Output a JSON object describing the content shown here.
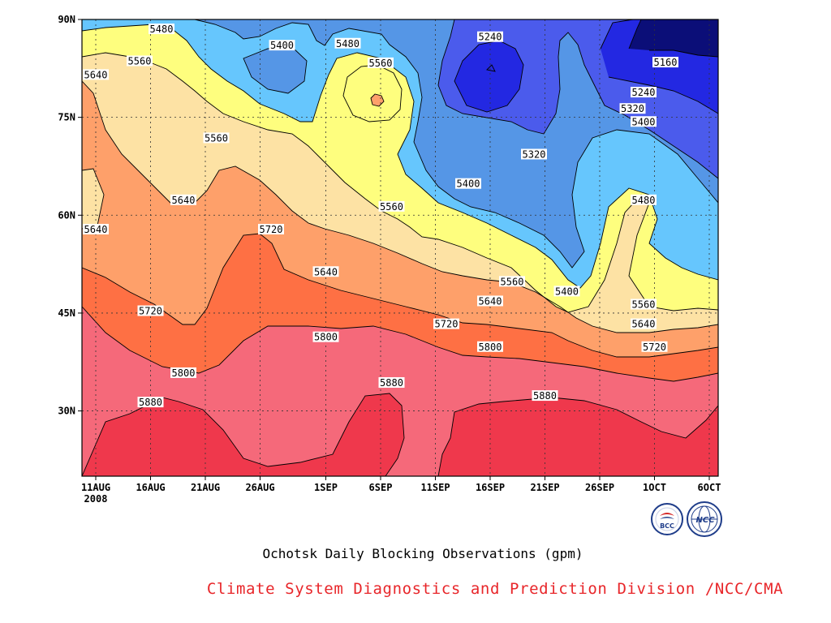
{
  "chart_data": {
    "type": "heatmap",
    "subtype": "filled-contour (time–latitude Hovmöller)",
    "caption": "Ochotsk Daily Blocking Observations (gpm)",
    "credit": "Climate System Diagnostics and Prediction Division /NCC/CMA",
    "x_axis": {
      "ticks": [
        {
          "label": "11AUG",
          "sublabel": "2008",
          "date": "2008-08-11"
        },
        {
          "label": "16AUG",
          "date": "2008-08-16"
        },
        {
          "label": "21AUG",
          "date": "2008-08-21"
        },
        {
          "label": "26AUG",
          "date": "2008-08-26"
        },
        {
          "label": "1SEP",
          "date": "2008-09-01"
        },
        {
          "label": "6SEP",
          "date": "2008-09-06"
        },
        {
          "label": "11SEP",
          "date": "2008-09-11"
        },
        {
          "label": "16SEP",
          "date": "2008-09-16"
        },
        {
          "label": "21SEP",
          "date": "2008-09-21"
        },
        {
          "label": "26SEP",
          "date": "2008-09-26"
        },
        {
          "label": "1OCT",
          "date": "2008-10-01"
        },
        {
          "label": "6OCT",
          "date": "2008-10-06"
        }
      ]
    },
    "y_axis": {
      "range": [
        20,
        90
      ],
      "ticks": [
        {
          "label": "30N",
          "value": 30
        },
        {
          "label": "45N",
          "value": 45
        },
        {
          "label": "60N",
          "value": 60
        },
        {
          "label": "75N",
          "value": 75
        },
        {
          "label": "90N",
          "value": 90
        }
      ]
    },
    "grid": true,
    "levels": [
      5160,
      5240,
      5320,
      5400,
      5480,
      5560,
      5640,
      5720,
      5800,
      5880
    ],
    "colors": {
      "above_5880": "#ef384c",
      "5800_5880": "#f5697a",
      "5720_5800": "#fe7044",
      "5640_5720": "#fea06a",
      "5560_5640": "#fde2a4",
      "5480_5560": "#fefe7e",
      "5400_5480": "#66c6fd",
      "5320_5400": "#5596e6",
      "5240_5320": "#4b5bec",
      "5160_5240": "#2328e2",
      "below_5160": "#0b0e78",
      "credit_text": "#e8262a"
    },
    "contour_labels": [
      {
        "text": "5480",
        "date": "2008-08-17",
        "lat": 88.5
      },
      {
        "text": "5400",
        "date": "2008-08-28",
        "lat": 86.0
      },
      {
        "text": "5480",
        "date": "2008-09-03",
        "lat": 86.3
      },
      {
        "text": "5560",
        "date": "2008-09-06",
        "lat": 83.3
      },
      {
        "text": "5240",
        "date": "2008-09-16",
        "lat": 87.3
      },
      {
        "text": "5160",
        "date": "2008-10-02",
        "lat": 83.4
      },
      {
        "text": "5560",
        "date": "2008-08-15",
        "lat": 83.6
      },
      {
        "text": "5640",
        "date": "2008-08-11",
        "lat": 81.5
      },
      {
        "text": "5240",
        "date": "2008-09-30",
        "lat": 78.8
      },
      {
        "text": "5320",
        "date": "2008-09-29",
        "lat": 76.3
      },
      {
        "text": "5400",
        "date": "2008-09-30",
        "lat": 74.3
      },
      {
        "text": "5560",
        "date": "2008-08-22",
        "lat": 71.8
      },
      {
        "text": "5320",
        "date": "2008-09-20",
        "lat": 69.3
      },
      {
        "text": "5400",
        "date": "2008-09-14",
        "lat": 64.8
      },
      {
        "text": "5640",
        "date": "2008-08-19",
        "lat": 62.3
      },
      {
        "text": "5480",
        "date": "2008-09-30",
        "lat": 62.3
      },
      {
        "text": "5560",
        "date": "2008-09-07",
        "lat": 61.3
      },
      {
        "text": "5640",
        "date": "2008-08-11",
        "lat": 57.8
      },
      {
        "text": "5720",
        "date": "2008-08-27",
        "lat": 57.8
      },
      {
        "text": "5640",
        "date": "2008-09-01",
        "lat": 51.3
      },
      {
        "text": "5560",
        "date": "2008-09-18",
        "lat": 49.8
      },
      {
        "text": "5400",
        "date": "2008-09-23",
        "lat": 48.3
      },
      {
        "text": "5640",
        "date": "2008-09-16",
        "lat": 46.8
      },
      {
        "text": "5560",
        "date": "2008-09-30",
        "lat": 46.3
      },
      {
        "text": "5720",
        "date": "2008-08-16",
        "lat": 45.3
      },
      {
        "text": "5720",
        "date": "2008-09-12",
        "lat": 43.3
      },
      {
        "text": "5640",
        "date": "2008-09-30",
        "lat": 43.3
      },
      {
        "text": "5800",
        "date": "2008-09-01",
        "lat": 41.3
      },
      {
        "text": "5800",
        "date": "2008-09-16",
        "lat": 39.8
      },
      {
        "text": "5720",
        "date": "2008-10-01",
        "lat": 39.8
      },
      {
        "text": "5800",
        "date": "2008-08-19",
        "lat": 35.8
      },
      {
        "text": "5880",
        "date": "2008-09-07",
        "lat": 34.3
      },
      {
        "text": "5880",
        "date": "2008-09-21",
        "lat": 32.3
      },
      {
        "text": "5880",
        "date": "2008-08-16",
        "lat": 31.3
      }
    ]
  },
  "logos": {
    "left": {
      "name": "bcc-logo",
      "text": "BCC",
      "bg": "#ffffff",
      "ring": "#1f3d8a",
      "accent": "#d62828"
    },
    "right": {
      "name": "ncc-logo",
      "text": "NCC",
      "ring": "#1f3d8a"
    }
  }
}
